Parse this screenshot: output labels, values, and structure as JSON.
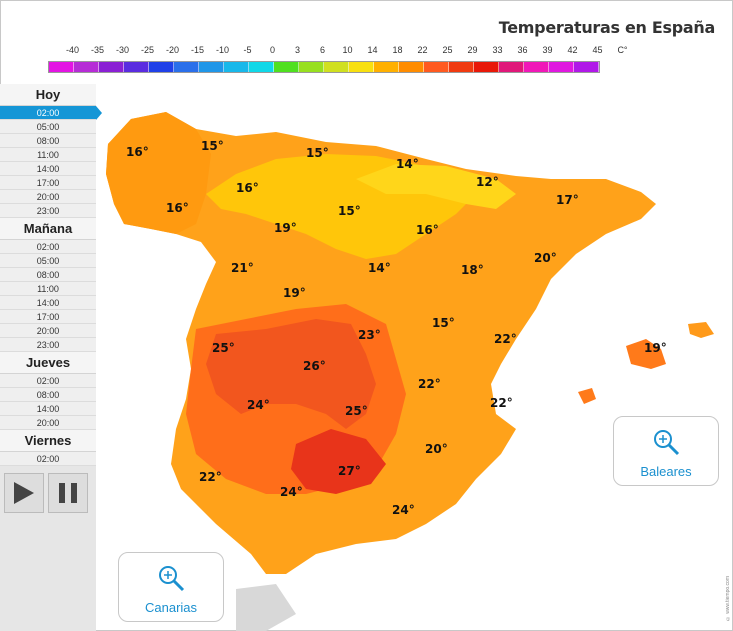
{
  "title": "Temperaturas en España",
  "legend": {
    "labels": [
      "-40",
      "-35",
      "-30",
      "-25",
      "-20",
      "-15",
      "-10",
      "-5",
      "0",
      "3",
      "6",
      "10",
      "14",
      "18",
      "22",
      "25",
      "29",
      "33",
      "36",
      "39",
      "42",
      "45",
      "C°"
    ],
    "colors": [
      "#e314e3",
      "#b62cd6",
      "#8a20d4",
      "#5a2ce0",
      "#2040e8",
      "#2a6fea",
      "#2096e8",
      "#18b8ea",
      "#10d8e8",
      "#50e020",
      "#98e020",
      "#d0e020",
      "#f8e010",
      "#ffb000",
      "#ff8c00",
      "#ff5a20",
      "#f03a10",
      "#e81808",
      "#e0187a",
      "#f018b8",
      "#e018e0",
      "#b018e8"
    ]
  },
  "sidebar": {
    "days": [
      {
        "name": "Hoy",
        "times": [
          "02:00",
          "05:00",
          "08:00",
          "11:00",
          "14:00",
          "17:00",
          "20:00",
          "23:00"
        ]
      },
      {
        "name": "Mañana",
        "times": [
          "02:00",
          "05:00",
          "08:00",
          "11:00",
          "14:00",
          "17:00",
          "20:00",
          "23:00"
        ]
      },
      {
        "name": "Jueves",
        "times": [
          "02:00",
          "08:00",
          "14:00",
          "20:00"
        ]
      },
      {
        "name": "Viernes",
        "times": [
          "02:00"
        ]
      }
    ],
    "active": "Hoy 02:00"
  },
  "controls": {
    "play_icon": "play-icon",
    "pause_icon": "pause-icon"
  },
  "buttons": {
    "baleares": "Baleares",
    "canarias": "Canarias",
    "icon": "zoom-in-icon"
  },
  "temperatures": [
    "16°",
    "15°",
    "15°",
    "14°",
    "12°",
    "16°",
    "17°",
    "16°",
    "15°",
    "19°",
    "16°",
    "20°",
    "21°",
    "14°",
    "18°",
    "19°",
    "15°",
    "22°",
    "23°",
    "25°",
    "26°",
    "22°",
    "19°",
    "24°",
    "25°",
    "22°",
    "20°",
    "22°",
    "27°",
    "24°",
    "24°"
  ],
  "copyright": "© www.tiempo.com"
}
